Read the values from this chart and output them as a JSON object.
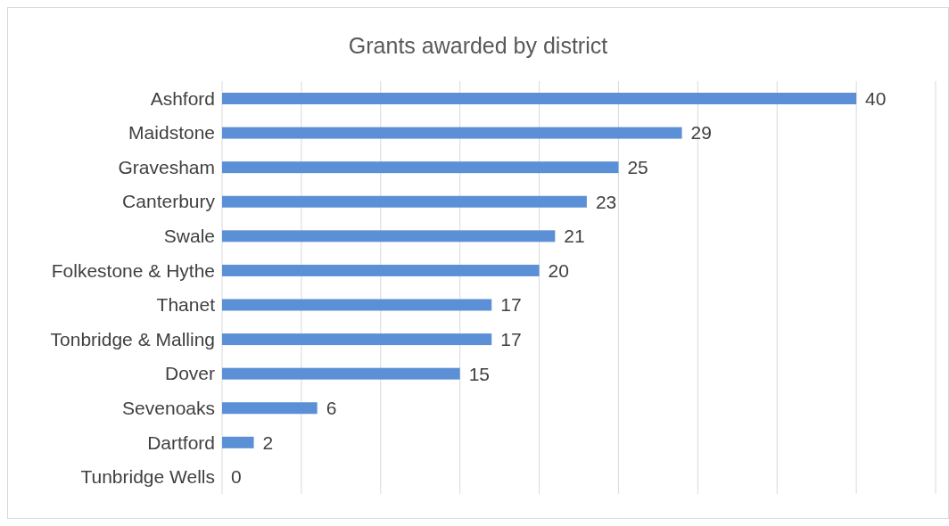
{
  "chart_data": {
    "type": "bar",
    "orientation": "horizontal",
    "title": "Grants awarded by district",
    "categories": [
      "Ashford",
      "Maidstone",
      "Gravesham",
      "Canterbury",
      "Swale",
      "Folkestone & Hythe",
      "Thanet",
      "Tonbridge & Malling",
      "Dover",
      "Sevenoaks",
      "Dartford",
      "Tunbridge Wells"
    ],
    "values": [
      40,
      29,
      25,
      23,
      21,
      20,
      17,
      17,
      15,
      6,
      2,
      0
    ],
    "color": "#5b8fd6",
    "xlim": [
      0,
      45
    ],
    "xticks": [
      {
        "value": 0,
        "label": null
      },
      {
        "value": 5,
        "label": null
      },
      {
        "value": 10,
        "label": null
      },
      {
        "value": 15,
        "label": null
      },
      {
        "value": 20,
        "label": null
      },
      {
        "value": 25,
        "label": null
      },
      {
        "value": 30,
        "label": null
      },
      {
        "value": 35,
        "label": null
      },
      {
        "value": 40,
        "label": null
      },
      {
        "value": 45,
        "label": null
      }
    ],
    "tick_labels": "y",
    "grid": "x",
    "data_labels": true,
    "legend": false
  }
}
